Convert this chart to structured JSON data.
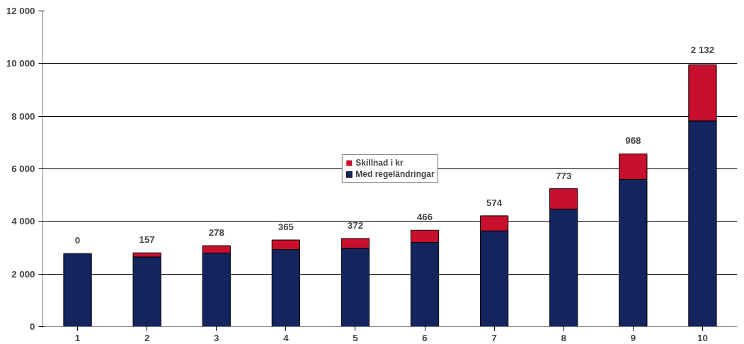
{
  "chart_data": {
    "type": "bar",
    "stacked": true,
    "categories": [
      "1",
      "2",
      "3",
      "4",
      "5",
      "6",
      "7",
      "8",
      "9",
      "10"
    ],
    "series": [
      {
        "name": "Med regeländringar",
        "color": "#13245f",
        "values": [
          2780,
          2650,
          2800,
          2930,
          2980,
          3200,
          3640,
          4470,
          5600,
          7820
        ]
      },
      {
        "name": "Skillnad i kr",
        "color": "#c8102e",
        "values": [
          0,
          157,
          278,
          365,
          372,
          466,
          574,
          773,
          968,
          2132
        ],
        "value_labels": [
          "0",
          "157",
          "278",
          "365",
          "372",
          "466",
          "574",
          "773",
          "968",
          "2 132"
        ]
      }
    ],
    "ylim": [
      0,
      12000
    ],
    "yticks": [
      {
        "value": 0,
        "label": "0"
      },
      {
        "value": 2000,
        "label": "2 000"
      },
      {
        "value": 4000,
        "label": "4 000"
      },
      {
        "value": 6000,
        "label": "6 000"
      },
      {
        "value": 8000,
        "label": "8 000"
      },
      {
        "value": 10000,
        "label": "10 000"
      },
      {
        "value": 12000,
        "label": "12 000"
      }
    ],
    "grid": "y",
    "legend": "center"
  }
}
